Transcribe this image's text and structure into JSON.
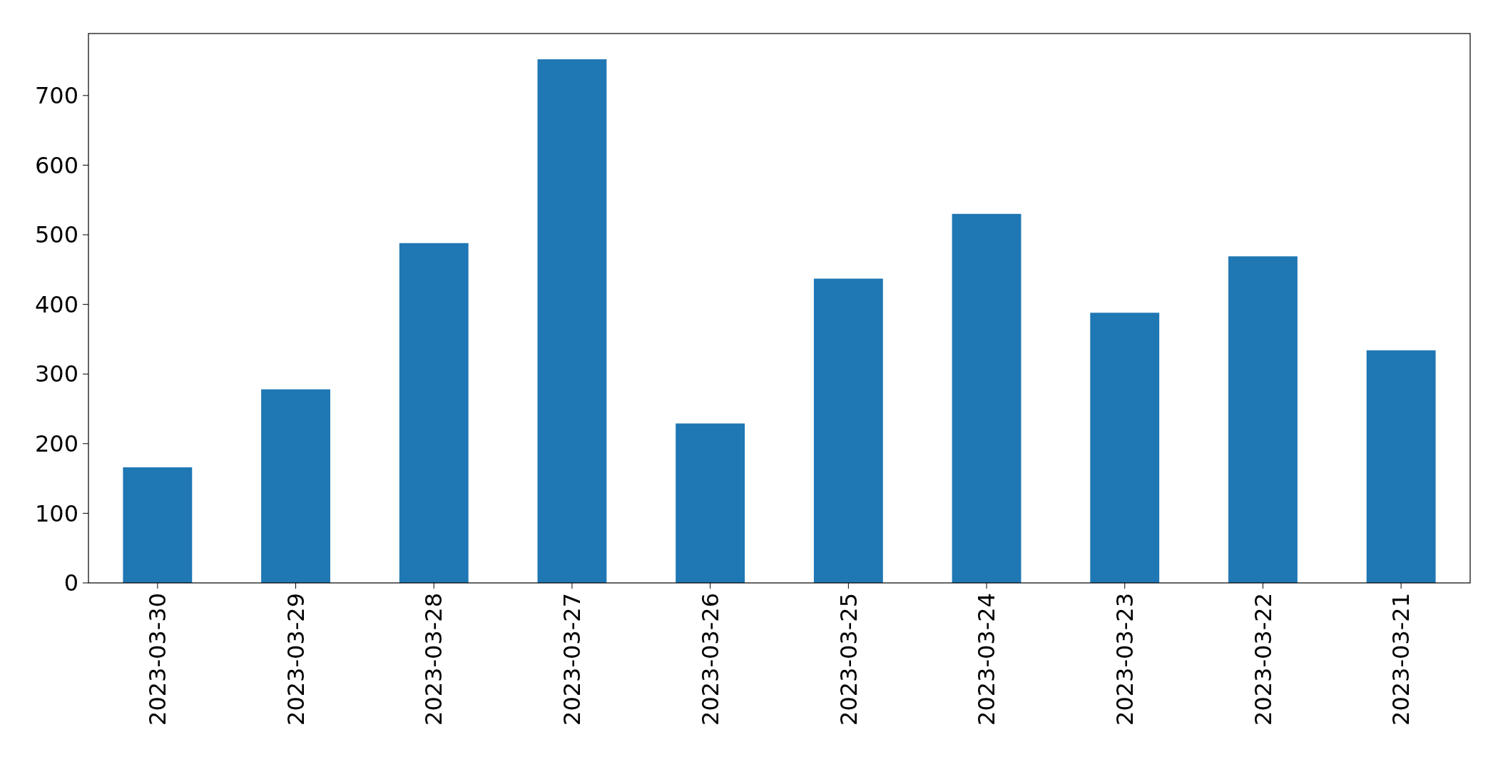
{
  "chart_data": {
    "type": "bar",
    "categories": [
      "2023-03-30",
      "2023-03-29",
      "2023-03-28",
      "2023-03-27",
      "2023-03-26",
      "2023-03-25",
      "2023-03-24",
      "2023-03-23",
      "2023-03-22",
      "2023-03-21"
    ],
    "values": [
      166,
      278,
      488,
      752,
      229,
      437,
      530,
      388,
      469,
      334
    ],
    "color": "#1f77b4",
    "ylim": [
      0,
      789
    ],
    "yticks": [
      0,
      100,
      200,
      300,
      400,
      500,
      600,
      700
    ],
    "grid": false
  }
}
